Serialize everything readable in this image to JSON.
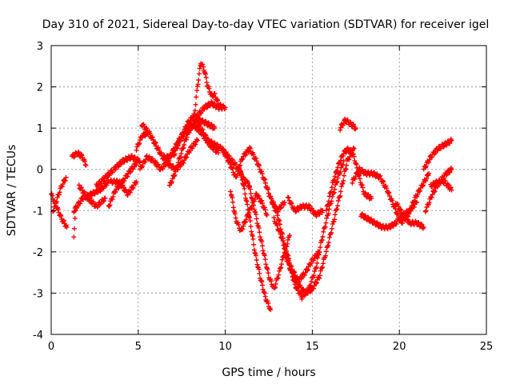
{
  "chart_data": {
    "type": "scatter",
    "title": "Day 310 of 2021, Sidereal Day-to-day VTEC variation (SDTVAR) for receiver igel",
    "xlabel": "GPS time / hours",
    "ylabel": "SDTVAR / TECUs",
    "xlim": [
      0,
      25
    ],
    "ylim": [
      -4,
      3
    ],
    "xticks": [
      "0",
      "5",
      "10",
      "15",
      "20",
      "25"
    ],
    "yticks": [
      "-4",
      "-3",
      "-2",
      "-1",
      "0",
      "1",
      "2",
      "3"
    ],
    "grid": true,
    "marker": "plus",
    "color": "#ff0000",
    "series": [
      {
        "x": [
          0.0,
          0.3,
          0.6,
          0.9
        ],
        "y": [
          -0.6,
          -0.9,
          -1.2,
          -1.4
        ]
      },
      {
        "x": [
          0.1,
          0.35,
          0.6,
          0.85
        ],
        "y": [
          -1.0,
          -0.7,
          -0.4,
          -0.2
        ]
      },
      {
        "x": [
          1.3,
          1.4
        ],
        "y": [
          -1.6,
          -1.0
        ]
      },
      {
        "x": [
          1.2,
          1.5,
          1.8,
          2.0
        ],
        "y": [
          0.3,
          0.4,
          0.3,
          0.1
        ]
      },
      {
        "x": [
          1.3,
          1.8,
          2.3,
          2.8,
          3.3
        ],
        "y": [
          -1.0,
          -0.7,
          -0.6,
          -0.5,
          -0.3
        ]
      },
      {
        "x": [
          1.6,
          2.1,
          2.6,
          3.1
        ],
        "y": [
          -0.4,
          -0.7,
          -0.9,
          -0.7
        ]
      },
      {
        "x": [
          2.6,
          3.1,
          3.6,
          4.1,
          4.6,
          5.1
        ],
        "y": [
          -0.4,
          -0.2,
          0.0,
          0.2,
          0.3,
          0.2
        ]
      },
      {
        "x": [
          3.3,
          3.7,
          4.1,
          4.6,
          5.0
        ],
        "y": [
          -0.9,
          -0.5,
          -0.3,
          0.0,
          0.2
        ]
      },
      {
        "x": [
          3.4,
          3.9,
          4.4,
          4.9
        ],
        "y": [
          -0.3,
          -0.3,
          -0.6,
          -0.3
        ]
      },
      {
        "x": [
          4.9,
          5.2,
          5.6,
          6.0,
          6.4,
          6.8,
          7.2,
          7.6,
          8.1,
          8.6,
          9.1,
          9.6
        ],
        "y": [
          0.5,
          0.8,
          0.9,
          0.6,
          0.3,
          0.3,
          0.6,
          0.9,
          1.1,
          0.9,
          0.6,
          0.4
        ]
      },
      {
        "x": [
          5.1,
          5.5,
          5.9,
          6.3,
          6.7,
          7.1,
          7.5,
          8.0,
          8.5,
          9.0,
          9.4
        ],
        "y": [
          0.0,
          0.3,
          0.2,
          0.0,
          0.2,
          0.5,
          0.8,
          1.0,
          1.2,
          1.1,
          1.0
        ]
      },
      {
        "x": [
          5.2,
          5.6,
          6.0,
          6.4,
          6.8,
          7.2,
          7.6,
          8.0,
          8.4
        ],
        "y": [
          1.1,
          0.9,
          0.6,
          0.3,
          0.1,
          0.0,
          0.2,
          0.5,
          0.7
        ]
      },
      {
        "x": [
          6.8,
          7.1,
          7.4,
          7.7,
          8.0,
          8.4,
          8.8,
          9.2,
          9.6,
          10.0
        ],
        "y": [
          -0.4,
          -0.1,
          0.3,
          0.7,
          1.0,
          1.3,
          1.5,
          1.6,
          1.5,
          1.5
        ]
      },
      {
        "x": [
          7.0,
          7.4,
          7.8,
          8.2,
          8.6,
          9.0,
          9.4,
          9.8,
          10.2,
          10.6,
          11.0,
          11.4
        ],
        "y": [
          0.3,
          0.7,
          1.1,
          1.3,
          1.0,
          0.7,
          0.6,
          0.5,
          0.3,
          0.1,
          -0.2,
          -0.4
        ]
      },
      {
        "x": [
          8.2,
          8.4,
          8.6,
          8.8,
          9.0,
          9.2,
          9.4,
          9.6,
          9.8
        ],
        "y": [
          1.2,
          2.0,
          2.6,
          2.4,
          2.0,
          1.8,
          1.8,
          1.6,
          1.5
        ]
      },
      {
        "x": [
          9.8,
          10.2,
          10.6,
          11.0,
          11.4,
          11.8,
          12.2,
          12.6,
          13.0,
          13.4
        ],
        "y": [
          0.5,
          0.2,
          -0.2,
          0.3,
          0.5,
          0.2,
          -0.2,
          -0.7,
          -1.0,
          -0.8
        ]
      },
      {
        "x": [
          10.3,
          10.6,
          10.9,
          11.2,
          11.5,
          11.8,
          12.1,
          12.4
        ],
        "y": [
          -0.5,
          -1.2,
          -1.5,
          -1.2,
          -0.9,
          -0.6,
          -0.8,
          -1.1
        ]
      },
      {
        "x": [
          10.8,
          11.1,
          11.4,
          11.7,
          12.0,
          12.3,
          12.6
        ],
        "y": [
          0.1,
          -0.5,
          -1.2,
          -2.0,
          -2.6,
          -3.1,
          -3.4
        ]
      },
      {
        "x": [
          11.3,
          11.6,
          11.9,
          12.2,
          12.5,
          12.8,
          13.1,
          13.4,
          13.7
        ],
        "y": [
          -0.3,
          -0.8,
          -1.4,
          -2.0,
          -2.6,
          -2.9,
          -2.5,
          -2.0,
          -1.6
        ]
      },
      {
        "x": [
          12.2,
          12.6,
          13.0,
          13.4,
          13.8,
          14.2,
          14.6,
          15.0,
          15.4
        ],
        "y": [
          -0.2,
          -0.7,
          -1.1,
          -1.8,
          -2.4,
          -2.7,
          -2.5,
          -2.2,
          -2.0
        ]
      },
      {
        "x": [
          12.8,
          13.2,
          13.6,
          14.0,
          14.4,
          14.8,
          15.2,
          15.6,
          16.0,
          16.4,
          16.8
        ],
        "y": [
          -1.2,
          -1.6,
          -2.2,
          -2.8,
          -3.1,
          -2.9,
          -2.4,
          -1.6,
          -0.9,
          -0.3,
          0.2
        ]
      },
      {
        "x": [
          13.4,
          13.8,
          14.2,
          14.6,
          15.0,
          15.4,
          15.8,
          16.2,
          16.6,
          17.0,
          17.4
        ],
        "y": [
          -2.0,
          -2.5,
          -2.8,
          -3.0,
          -2.9,
          -2.6,
          -2.0,
          -1.3,
          -0.6,
          0.2,
          0.5
        ]
      },
      {
        "x": [
          13.6,
          14.0,
          14.4,
          14.8,
          15.2,
          15.6
        ],
        "y": [
          -0.7,
          -1.0,
          -0.9,
          -0.9,
          -1.1,
          -1.0
        ]
      },
      {
        "x": [
          15.8,
          16.2,
          16.5,
          16.8,
          17.1,
          17.4,
          17.7,
          18.0,
          18.4
        ],
        "y": [
          -1.0,
          -0.3,
          0.1,
          0.4,
          0.5,
          0.3,
          -0.2,
          -0.6,
          -0.7
        ]
      },
      {
        "x": [
          16.6,
          16.9,
          17.2,
          17.5
        ],
        "y": [
          1.0,
          1.2,
          1.1,
          1.0
        ]
      },
      {
        "x": [
          17.3,
          17.7,
          18.1,
          18.5,
          18.9,
          19.3,
          19.7,
          20.1,
          20.5,
          20.9,
          21.3,
          21.7
        ],
        "y": [
          -0.3,
          0.0,
          -0.1,
          -0.1,
          -0.2,
          -0.5,
          -0.9,
          -1.3,
          -1.1,
          -0.7,
          -0.4,
          -0.1
        ]
      },
      {
        "x": [
          17.8,
          18.2,
          18.6,
          19.0,
          19.4,
          19.8,
          20.2,
          20.6,
          21.0
        ],
        "y": [
          -1.1,
          -1.2,
          -1.3,
          -1.4,
          -1.4,
          -1.3,
          -1.1,
          -1.0,
          -0.8
        ]
      },
      {
        "x": [
          19.8,
          20.2,
          20.6,
          21.0,
          21.4
        ],
        "y": [
          -0.8,
          -1.1,
          -1.3,
          -1.3,
          -1.4
        ]
      },
      {
        "x": [
          21.4,
          21.8,
          22.2,
          22.6,
          23.0
        ],
        "y": [
          0.0,
          0.3,
          0.5,
          0.6,
          0.7
        ]
      },
      {
        "x": [
          21.5,
          21.9,
          22.3,
          22.7,
          23.0
        ],
        "y": [
          -1.0,
          -0.6,
          -0.3,
          -0.1,
          0.0
        ]
      },
      {
        "x": [
          21.8,
          22.2,
          22.6,
          23.0
        ],
        "y": [
          -0.4,
          -0.3,
          -0.3,
          -0.5
        ]
      }
    ]
  }
}
